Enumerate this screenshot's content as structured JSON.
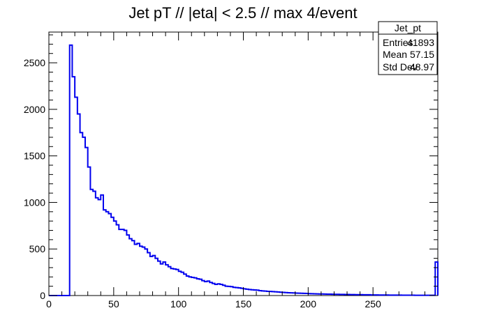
{
  "chart_data": {
    "type": "histogram",
    "title": "Jet pT // |eta| < 2.5 // max 4/event",
    "xlabel": "",
    "ylabel": "",
    "xlim": [
      0,
      300
    ],
    "ylim": [
      0,
      2830
    ],
    "bin_width": 2,
    "line_color": "#0000ee",
    "x_ticks": [
      0,
      50,
      100,
      150,
      200,
      250
    ],
    "y_ticks": [
      0,
      500,
      1000,
      1500,
      2000,
      2500
    ],
    "bins": [
      [
        0,
        16,
        0
      ],
      [
        16,
        18,
        2690
      ],
      [
        18,
        20,
        2350
      ],
      [
        20,
        22,
        2130
      ],
      [
        22,
        24,
        1950
      ],
      [
        24,
        26,
        1750
      ],
      [
        26,
        28,
        1700
      ],
      [
        28,
        30,
        1590
      ],
      [
        30,
        32,
        1380
      ],
      [
        32,
        34,
        1140
      ],
      [
        34,
        36,
        1120
      ],
      [
        36,
        38,
        1050
      ],
      [
        38,
        40,
        1030
      ],
      [
        40,
        42,
        1080
      ],
      [
        42,
        44,
        920
      ],
      [
        44,
        46,
        900
      ],
      [
        46,
        48,
        880
      ],
      [
        48,
        50,
        840
      ],
      [
        50,
        52,
        800
      ],
      [
        52,
        54,
        760
      ],
      [
        54,
        56,
        710
      ],
      [
        56,
        58,
        710
      ],
      [
        58,
        60,
        700
      ],
      [
        60,
        62,
        650
      ],
      [
        62,
        64,
        610
      ],
      [
        64,
        66,
        590
      ],
      [
        66,
        68,
        550
      ],
      [
        68,
        70,
        560
      ],
      [
        70,
        72,
        530
      ],
      [
        72,
        74,
        520
      ],
      [
        74,
        76,
        500
      ],
      [
        76,
        78,
        460
      ],
      [
        78,
        80,
        420
      ],
      [
        80,
        82,
        430
      ],
      [
        82,
        84,
        400
      ],
      [
        84,
        86,
        370
      ],
      [
        86,
        88,
        340
      ],
      [
        88,
        90,
        360
      ],
      [
        90,
        92,
        330
      ],
      [
        92,
        94,
        310
      ],
      [
        94,
        96,
        290
      ],
      [
        96,
        98,
        285
      ],
      [
        98,
        100,
        280
      ],
      [
        100,
        102,
        260
      ],
      [
        102,
        104,
        250
      ],
      [
        104,
        106,
        230
      ],
      [
        106,
        108,
        210
      ],
      [
        108,
        110,
        200
      ],
      [
        110,
        112,
        195
      ],
      [
        112,
        114,
        190
      ],
      [
        114,
        116,
        180
      ],
      [
        116,
        118,
        175
      ],
      [
        118,
        120,
        160
      ],
      [
        120,
        122,
        150
      ],
      [
        122,
        124,
        155
      ],
      [
        124,
        126,
        140
      ],
      [
        126,
        128,
        130
      ],
      [
        128,
        130,
        120
      ],
      [
        130,
        132,
        125
      ],
      [
        132,
        134,
        120
      ],
      [
        134,
        136,
        110
      ],
      [
        136,
        138,
        100
      ],
      [
        138,
        140,
        98
      ],
      [
        140,
        142,
        95
      ],
      [
        142,
        144,
        88
      ],
      [
        144,
        146,
        85
      ],
      [
        146,
        148,
        82
      ],
      [
        148,
        150,
        78
      ],
      [
        150,
        152,
        72
      ],
      [
        152,
        154,
        68
      ],
      [
        154,
        156,
        65
      ],
      [
        156,
        158,
        62
      ],
      [
        158,
        160,
        60
      ],
      [
        160,
        162,
        58
      ],
      [
        162,
        164,
        52
      ],
      [
        164,
        166,
        50
      ],
      [
        166,
        168,
        48
      ],
      [
        168,
        170,
        45
      ],
      [
        170,
        172,
        44
      ],
      [
        172,
        174,
        42
      ],
      [
        174,
        176,
        40
      ],
      [
        176,
        178,
        38
      ],
      [
        178,
        180,
        36
      ],
      [
        180,
        182,
        34
      ],
      [
        182,
        184,
        32
      ],
      [
        184,
        186,
        30
      ],
      [
        186,
        188,
        29
      ],
      [
        188,
        190,
        28
      ],
      [
        190,
        192,
        26
      ],
      [
        192,
        194,
        25
      ],
      [
        194,
        196,
        24
      ],
      [
        196,
        198,
        23
      ],
      [
        198,
        200,
        22
      ],
      [
        200,
        202,
        21
      ],
      [
        202,
        204,
        20
      ],
      [
        204,
        206,
        19
      ],
      [
        206,
        208,
        18
      ],
      [
        208,
        210,
        17
      ],
      [
        210,
        212,
        17
      ],
      [
        212,
        214,
        16
      ],
      [
        214,
        216,
        15
      ],
      [
        216,
        218,
        15
      ],
      [
        218,
        220,
        14
      ],
      [
        220,
        222,
        13
      ],
      [
        222,
        224,
        13
      ],
      [
        224,
        226,
        12
      ],
      [
        226,
        228,
        12
      ],
      [
        228,
        230,
        11
      ],
      [
        230,
        232,
        11
      ],
      [
        232,
        234,
        10
      ],
      [
        234,
        236,
        10
      ],
      [
        236,
        238,
        9
      ],
      [
        238,
        240,
        9
      ],
      [
        240,
        242,
        9
      ],
      [
        242,
        244,
        8
      ],
      [
        244,
        246,
        8
      ],
      [
        246,
        248,
        8
      ],
      [
        248,
        250,
        7
      ],
      [
        250,
        252,
        7
      ],
      [
        252,
        254,
        7
      ],
      [
        254,
        256,
        6
      ],
      [
        256,
        258,
        6
      ],
      [
        258,
        260,
        6
      ],
      [
        260,
        262,
        6
      ],
      [
        262,
        264,
        5
      ],
      [
        264,
        266,
        5
      ],
      [
        266,
        268,
        5
      ],
      [
        268,
        270,
        5
      ],
      [
        270,
        272,
        5
      ],
      [
        272,
        274,
        4
      ],
      [
        274,
        276,
        4
      ],
      [
        276,
        278,
        4
      ],
      [
        278,
        280,
        4
      ],
      [
        280,
        282,
        4
      ],
      [
        282,
        284,
        3
      ],
      [
        284,
        286,
        3
      ],
      [
        286,
        288,
        3
      ],
      [
        288,
        290,
        3
      ],
      [
        290,
        292,
        3
      ],
      [
        292,
        294,
        3
      ],
      [
        294,
        296,
        3
      ],
      [
        296,
        298,
        3
      ],
      [
        298,
        300,
        360
      ]
    ],
    "stats_box": {
      "name": "Jet_pt",
      "rows": [
        {
          "label": "Entries",
          "value": "41893"
        },
        {
          "label": "Mean",
          "value": "57.15"
        },
        {
          "label": "Std Dev",
          "value": "48.97"
        }
      ]
    }
  }
}
